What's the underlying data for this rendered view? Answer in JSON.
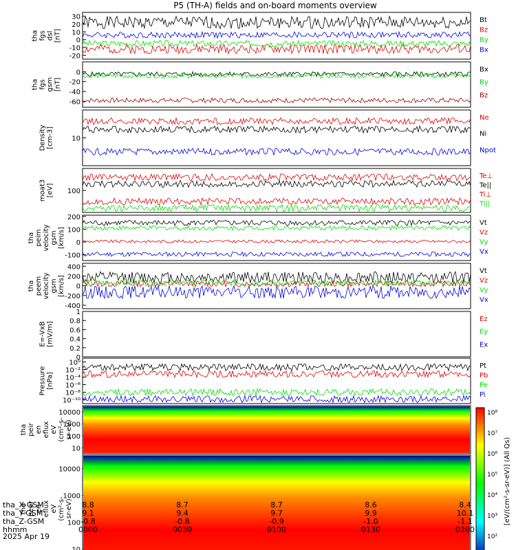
{
  "title": "P5 (TH-A) fields and on-board moments overview",
  "chart_data": [
    {
      "panel": "fgs_dsl",
      "type": "line",
      "ylabel_lines": [
        "tha",
        "fgs",
        "dsl",
        "[nT]"
      ],
      "yticks": [
        30,
        20,
        10,
        0,
        -10,
        -20
      ],
      "ylim": [
        -25,
        35
      ],
      "series": [
        {
          "name": "Bt",
          "color": "#000000",
          "base": 22,
          "amp": 8,
          "seed": 1
        },
        {
          "name": "Bz",
          "color": "#dd0000",
          "base": -12,
          "amp": 6,
          "seed": 2
        },
        {
          "name": "By",
          "color": "#00dd00",
          "base": -5,
          "amp": 4,
          "seed": 3
        },
        {
          "name": "Bx",
          "color": "#0000dd",
          "base": 6,
          "amp": 4,
          "seed": 4
        }
      ]
    },
    {
      "panel": "fgs_gsm",
      "type": "line",
      "ylabel_lines": [
        "tha",
        "fgs",
        "gsm",
        "[nT]"
      ],
      "yticks": [
        0,
        -20,
        -40,
        -60
      ],
      "ylim": [
        -72,
        20
      ],
      "series": [
        {
          "name": "Bx",
          "color": "#000000",
          "base": -5,
          "amp": 5,
          "seed": 5
        },
        {
          "name": "By",
          "color": "#00dd00",
          "base": -8,
          "amp": 5,
          "seed": 6
        },
        {
          "name": "Bz",
          "color": "#990000",
          "base": -58,
          "amp": 5,
          "seed": 7
        }
      ]
    },
    {
      "panel": "density",
      "type": "line",
      "ylabel_lines": [
        "Density",
        "[cm-3]"
      ],
      "yticks": [
        10
      ],
      "log": true,
      "series": [
        {
          "name": "Ne",
          "color": "#dd0000"
        },
        {
          "name": "Ni",
          "color": "#000000"
        },
        {
          "name": "Npot",
          "color": "#0000dd"
        }
      ]
    },
    {
      "panel": "temperature",
      "type": "line",
      "ylabel_lines": [
        "moat3",
        "[eV]"
      ],
      "yticks": [
        100
      ],
      "log": true,
      "series": [
        {
          "name": "Te⊥",
          "color": "#dd0000"
        },
        {
          "name": "Te||",
          "color": "#000000"
        },
        {
          "name": "Ti⊥",
          "color": "#dd0000"
        },
        {
          "name": "Ti||",
          "color": "#00dd00"
        }
      ]
    },
    {
      "panel": "peim_velocity",
      "type": "line",
      "ylabel_lines": [
        "tha",
        "peim",
        "velocity",
        "gsm",
        "[km/s]"
      ],
      "yticks": [
        200,
        100,
        0,
        -100
      ],
      "ylim": [
        -145,
        210
      ],
      "series": [
        {
          "name": "Vt",
          "color": "#000000",
          "base": 150,
          "amp": 22,
          "seed": 8
        },
        {
          "name": "Vz",
          "color": "#dd0000",
          "base": 5,
          "amp": 12,
          "seed": 9
        },
        {
          "name": "Vy",
          "color": "#00dd00",
          "base": 110,
          "amp": 18,
          "seed": 10
        },
        {
          "name": "Vx",
          "color": "#0000dd",
          "base": -95,
          "amp": 18,
          "seed": 11
        }
      ]
    },
    {
      "panel": "peem_velocity",
      "type": "line",
      "ylabel_lines": [
        "tha",
        "peem",
        "velocity",
        "gsm",
        "[km/s]"
      ],
      "yticks": [
        400,
        200,
        0,
        -200,
        -400
      ],
      "ylim": [
        -470,
        460
      ],
      "series": [
        {
          "name": "Vt",
          "color": "#000000",
          "base": 170,
          "amp": 120,
          "seed": 12
        },
        {
          "name": "Vz",
          "color": "#dd0000",
          "base": 40,
          "amp": 60,
          "seed": 13
        },
        {
          "name": "Vy",
          "color": "#00dd00",
          "base": 60,
          "amp": 60,
          "seed": 14
        },
        {
          "name": "Vx",
          "color": "#0000dd",
          "base": -130,
          "amp": 130,
          "seed": 15
        }
      ]
    },
    {
      "panel": "efield",
      "type": "line",
      "ylabel_lines": [
        "E=-VxB",
        "[mV/m]"
      ],
      "yticks": [
        1.0,
        0.8,
        0.6,
        0.4,
        0.2,
        0.0
      ],
      "ylim": [
        0,
        1
      ],
      "series": [
        {
          "name": "Ez",
          "color": "#dd0000"
        },
        {
          "name": "Ey",
          "color": "#00dd00"
        },
        {
          "name": "Ex",
          "color": "#0000dd"
        }
      ]
    },
    {
      "panel": "pressure",
      "type": "line",
      "ylabel_lines": [
        "Pressure",
        "[nPa]"
      ],
      "yticks": [
        "10⁰",
        "10⁻²",
        "10⁻⁴",
        "10⁻⁶",
        "10⁻⁸",
        "10⁻¹⁰"
      ],
      "log": true,
      "series": [
        {
          "name": "Pt",
          "color": "#000000"
        },
        {
          "name": "Pb",
          "color": "#dd0000"
        },
        {
          "name": "Pe",
          "color": "#00dd00"
        },
        {
          "name": "Pi",
          "color": "#0000dd"
        }
      ]
    },
    {
      "panel": "peir_eflux",
      "type": "heatmap",
      "ylabel_lines": [
        "tha",
        "peir",
        "en",
        "eflux",
        "eV",
        "(cm²-s-",
        "sr-eV)"
      ],
      "yticks": [
        10000,
        1000,
        100,
        10
      ],
      "log": true
    },
    {
      "panel": "peer_eflux",
      "type": "heatmap",
      "ylabel_lines": [
        "tha",
        "peer",
        "en",
        "eflux",
        "eV",
        "(cm²-s-",
        "sr-eV)"
      ],
      "yticks": [
        10000,
        1000,
        100,
        10
      ],
      "log": true
    }
  ],
  "colorbar": {
    "ticks": [
      "10⁸",
      "10⁷",
      "10⁶",
      "10⁵",
      "10⁴",
      "10³",
      "10²"
    ],
    "label": "[eV/(cm²-s-sr-eV)] (All Qs)"
  },
  "x_axis": {
    "ticks": [
      "0000",
      "0030",
      "0100",
      "0130",
      "0200"
    ],
    "rows": [
      {
        "label": "tha_X-GSM",
        "values": [
          "8.8",
          "8.7",
          "8.7",
          "8.6",
          "8.4"
        ]
      },
      {
        "label": "tha_Y-GSM",
        "values": [
          "9.1",
          "9.4",
          "9.7",
          "9.9",
          "10.1"
        ]
      },
      {
        "label": "tha_Z-GSM",
        "values": [
          "-0.8",
          "-0.8",
          "-0.9",
          "-1.0",
          "-1.1"
        ]
      },
      {
        "label": "hhmm",
        "values": [
          "0000",
          "0030",
          "0100",
          "0130",
          "0200"
        ]
      }
    ],
    "date": "2025 Apr 19"
  }
}
